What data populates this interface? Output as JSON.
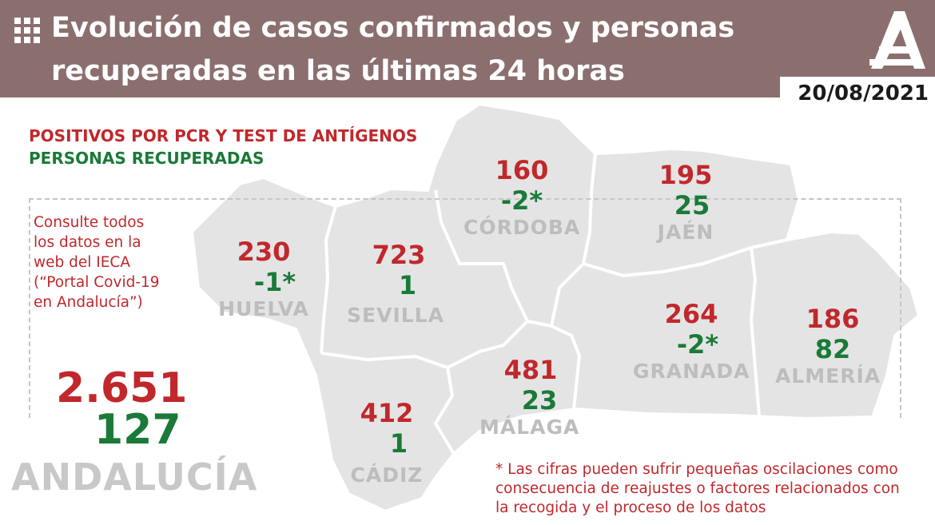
{
  "header": {
    "title_line1": "Evolución de casos confirmados y personas",
    "title_line2": "recuperadas en las últimas 24 horas",
    "date": "20/08/2021",
    "menu_icon": "grid-icon",
    "logo_icon": "junta-andalucia-logo"
  },
  "legend": {
    "positives": "POSITIVOS POR PCR Y TEST DE ANTÍGENOS",
    "recovered": "PERSONAS RECUPERADAS"
  },
  "info_text": "Consulte todos los datos en la web del IECA (“Portal Covid-19 en Andalucía”)",
  "totals": {
    "positives": "2.651",
    "recovered": "127",
    "region": "ANDALUCÍA"
  },
  "provinces": [
    {
      "name": "HUELVA",
      "positives": "230",
      "recovered": "-1*"
    },
    {
      "name": "SEVILLA",
      "positives": "723",
      "recovered": "1"
    },
    {
      "name": "CÓRDOBA",
      "positives": "160",
      "recovered": "-2*"
    },
    {
      "name": "JAÉN",
      "positives": "195",
      "recovered": "25"
    },
    {
      "name": "GRANADA",
      "positives": "264",
      "recovered": "-2*"
    },
    {
      "name": "ALMERÍA",
      "positives": "186",
      "recovered": "82"
    },
    {
      "name": "MÁLAGA",
      "positives": "481",
      "recovered": "23"
    },
    {
      "name": "CÁDIZ",
      "positives": "412",
      "recovered": "1"
    }
  ],
  "footnote": "* Las cifras pueden sufrir pequeñas oscilaciones como consecuencia de reajustes o factores relacionados con la recogida y el proceso de los datos",
  "colors": {
    "header_bg": "#8b6f6f",
    "positives": "#c0282b",
    "recovered": "#1a7a38",
    "map_fill": "#e4e4e5",
    "province_label": "#bdbdbd"
  }
}
